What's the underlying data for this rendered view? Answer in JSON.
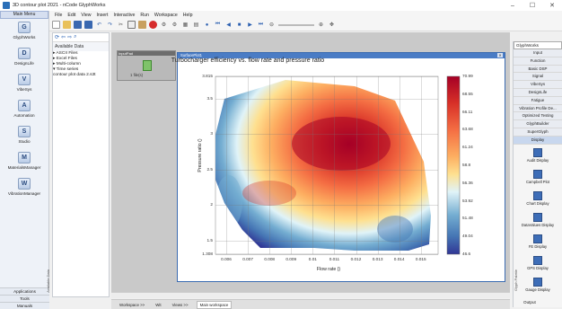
{
  "window": {
    "title": "3D contour plot 2021 - nCode GlyphWorks"
  },
  "left_nav": {
    "header": "Main Menu",
    "items": [
      {
        "label": "GlyphWorks",
        "icon": "G"
      },
      {
        "label": "DesignLife",
        "icon": "D"
      },
      {
        "label": "VibeSys",
        "icon": "V"
      },
      {
        "label": "Automation",
        "icon": "A"
      },
      {
        "label": "Studio",
        "icon": "S"
      },
      {
        "label": "MaterialsManager",
        "icon": "M"
      },
      {
        "label": "VibrationManager",
        "icon": "W"
      }
    ],
    "bottom": [
      "Applications",
      "Tools",
      "Manuals"
    ]
  },
  "menu": [
    "File",
    "Edit",
    "View",
    "Insert",
    "Interactive",
    "Run",
    "Workspace",
    "Help"
  ],
  "explorer": {
    "title": "Available Data",
    "side_label": "Available Data",
    "tree": [
      "▸ ASCII Files",
      "▸ Excel Files",
      "▸ Multi-column",
      "▾ Time series",
      "  contour plot data 2.s3t"
    ]
  },
  "input_window": {
    "title": "InputPad",
    "file_label": "1 file(s)"
  },
  "plot_window": {
    "title": "SurfacePlot1"
  },
  "chart_data": {
    "type": "heatmap",
    "title": "Turbocharger efficiency vs. flow rate and pressure ratio",
    "xlabel": "Flow rate ()",
    "ylabel": "Pressure ratio ()",
    "x_ticks": [
      "0.006",
      "0.007",
      "0.008",
      "0.009",
      "0.01",
      "0.011",
      "0.012",
      "0.013",
      "0.014",
      "0.015"
    ],
    "y_ticks": [
      "3.815",
      "3.5",
      "3",
      "2.5",
      "2",
      "1.5",
      "1.308"
    ],
    "xlim": [
      0.0055,
      0.0158
    ],
    "ylim": [
      1.308,
      3.815
    ],
    "colorbar": {
      "min": 46.6,
      "max": 70.99,
      "ticks": [
        "70.99",
        "68.55",
        "66.11",
        "63.68",
        "61.24",
        "58.8",
        "56.36",
        "53.92",
        "51.48",
        "49.04",
        "46.6"
      ]
    },
    "grid": true,
    "peak": {
      "x": 0.0105,
      "y": 2.95,
      "value": 70.99
    }
  },
  "right_palette": {
    "selector": "GlyphWorks",
    "side_label": "Glyph Palette",
    "categories": [
      "Input",
      "Function",
      "Basic DSP",
      "Signal",
      "VibeSys",
      "DesignLife",
      "Fatigue",
      "Vibration Profile De...",
      "Optimized Testing",
      "GlyphBuilder",
      "SuperGlyph",
      "Display"
    ],
    "active": "Display",
    "glyphs": [
      "Audit Display",
      "Campbell Plot",
      "Chart Display",
      "DataValues Display",
      "FE Display",
      "GPS Display",
      "Gauge Display"
    ],
    "output": "Output"
  },
  "bottom_bar": {
    "items": [
      "Workspace >>",
      "Wit",
      "Views >>",
      "Main workspace"
    ]
  },
  "colors": {
    "accent": "#4a7cc5",
    "hot": "#a50026",
    "cold": "#313695"
  }
}
